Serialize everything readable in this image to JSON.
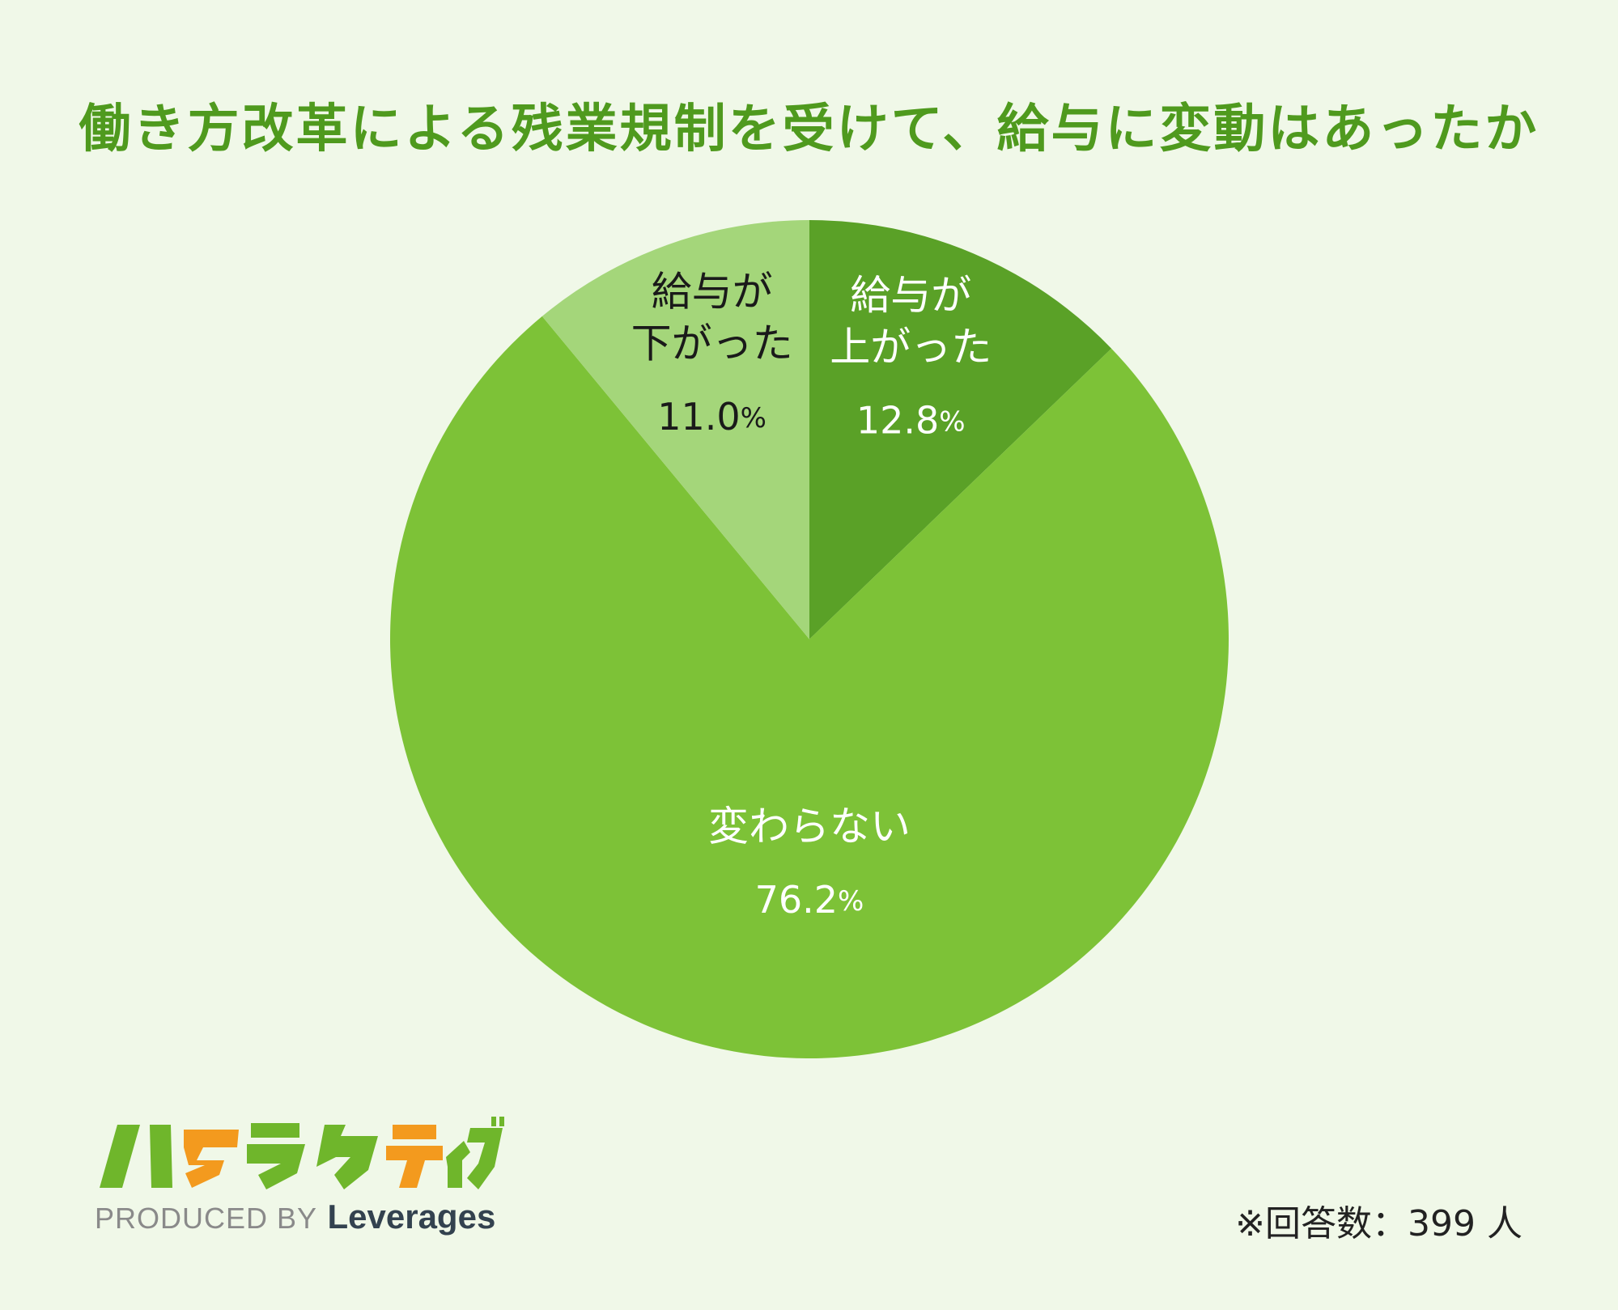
{
  "title": "働き方改革による残業規制を受けて、給与に変動はあったか",
  "chart_data": {
    "type": "pie",
    "title": "働き方改革による残業規制を受けて、給与に変動はあったか",
    "start": "12 o'clock",
    "direction": "clockwise",
    "slices": [
      {
        "label_lines": [
          "給与が",
          "上がった"
        ],
        "value": 12.8,
        "display": "12.8",
        "color": "#5aa127",
        "text_color": "#ffffff"
      },
      {
        "label_lines": [
          "変わらない"
        ],
        "value": 76.2,
        "display": "76.2",
        "color": "#7dc237",
        "text_color": "#ffffff"
      },
      {
        "label_lines": [
          "給与が",
          "下がった"
        ],
        "value": 11.0,
        "display": "11.0",
        "color": "#a4d67a",
        "text_color": "#1a1a1a"
      }
    ],
    "unit": "%",
    "note": "※回答数：399 人"
  },
  "logo": {
    "wordmark": "ハタラクティブ",
    "produced_by": "PRODUCED BY",
    "brand": "Leverages",
    "colors": {
      "green": "#6fb62b",
      "orange": "#f39a1e"
    }
  }
}
